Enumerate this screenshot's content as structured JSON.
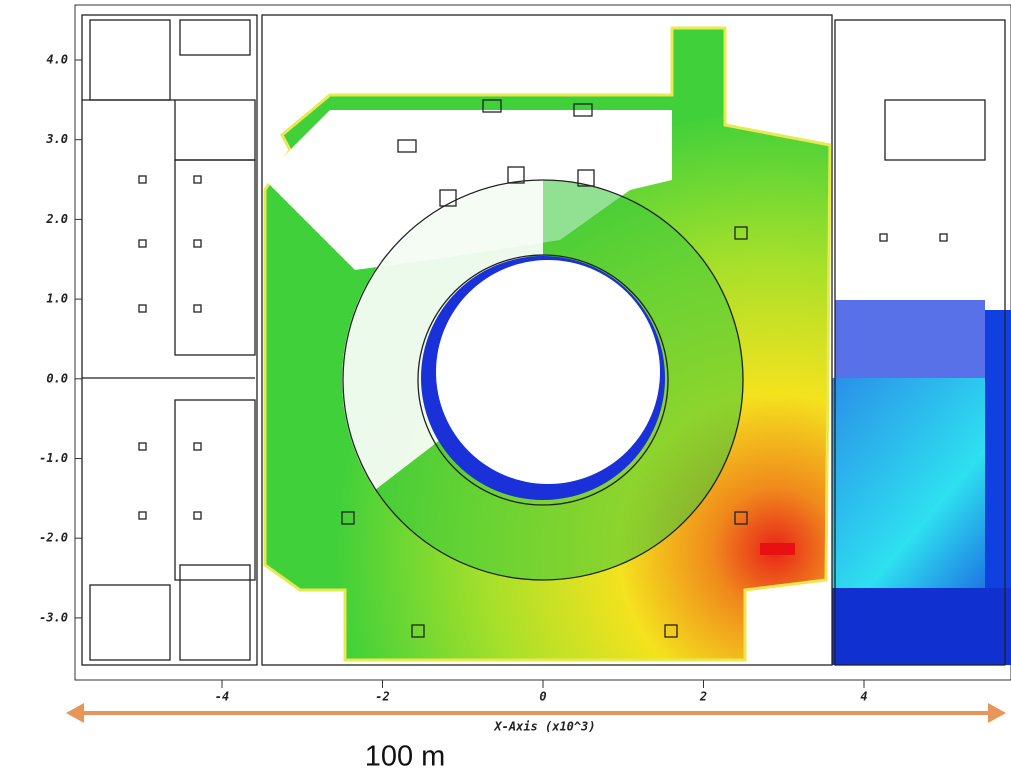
{
  "axes": {
    "yticks": [
      "4.0",
      "3.0",
      "2.0",
      "1.0",
      "0.0",
      "-1.0",
      "-2.0",
      "-3.0"
    ],
    "xticks": [
      "-4",
      "-2",
      "0",
      "2",
      "4"
    ],
    "xlabel": "X-Axis (x10^3)"
  },
  "scale": {
    "label": "100 m"
  }
}
